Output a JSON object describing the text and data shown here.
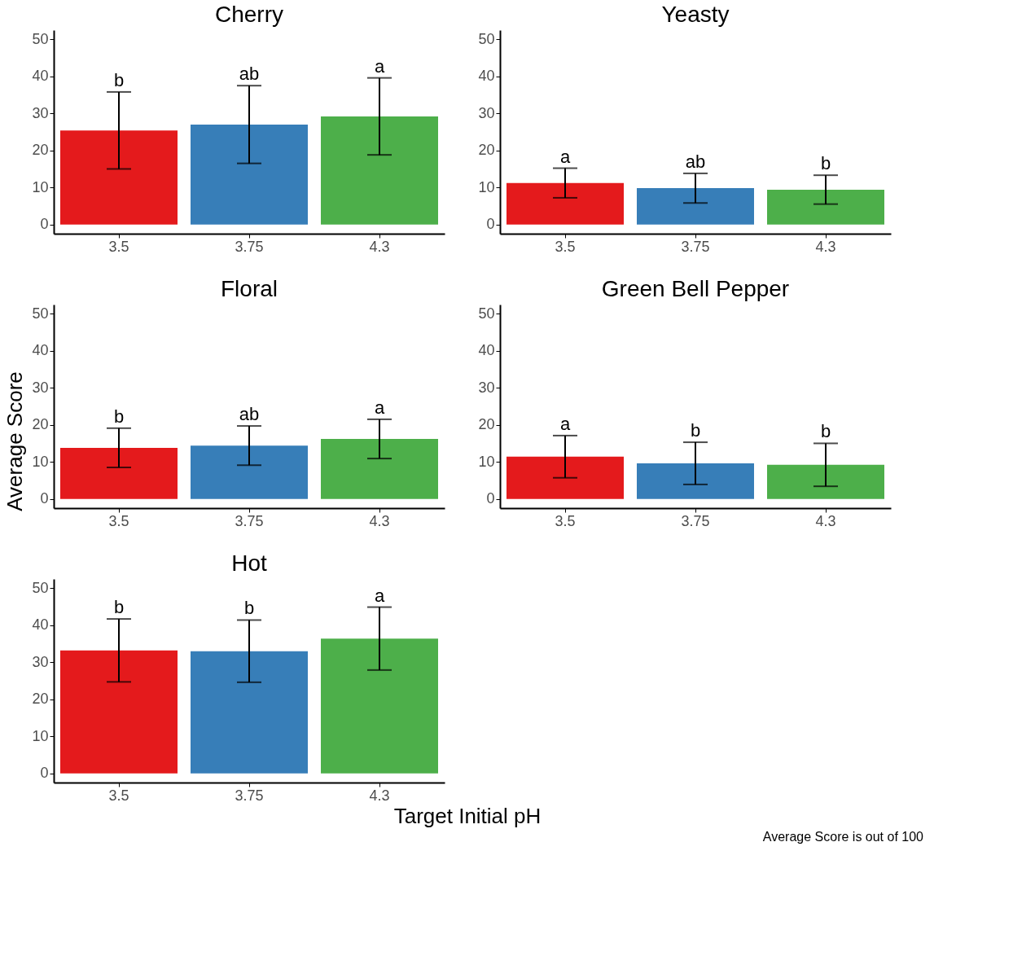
{
  "chart_data": [
    {
      "type": "bar",
      "title": "Cherry",
      "categories": [
        "3.5",
        "3.75",
        "4.3"
      ],
      "values": [
        25.4,
        27,
        29.2
      ],
      "errors": [
        10.4,
        10.5,
        10.4
      ],
      "colors": [
        "#e41a1c",
        "#377eb8",
        "#4daf4a"
      ],
      "ylim": [
        -2.5,
        52.5
      ],
      "yticks": [
        0,
        10,
        20,
        30,
        40,
        50
      ],
      "grid": false,
      "annotations": [
        {
          "text": "b",
          "x": "3.5",
          "y": 35.8
        },
        {
          "text": "ab",
          "x": "3.75",
          "y": 37.5
        },
        {
          "text": "a",
          "x": "4.3",
          "y": 39.6
        }
      ]
    },
    {
      "type": "bar",
      "title": "Yeasty",
      "categories": [
        "3.5",
        "3.75",
        "4.3"
      ],
      "values": [
        11.2,
        9.8,
        9.4
      ],
      "errors": [
        4,
        4,
        3.9
      ],
      "colors": [
        "#e41a1c",
        "#377eb8",
        "#4daf4a"
      ],
      "ylim": [
        -2.5,
        52.5
      ],
      "yticks": [
        0,
        10,
        20,
        30,
        40,
        50
      ],
      "grid": false,
      "annotations": [
        {
          "text": "a",
          "x": "3.5",
          "y": 15.2
        },
        {
          "text": "ab",
          "x": "3.75",
          "y": 13.8
        },
        {
          "text": "b",
          "x": "4.3",
          "y": 13.3
        }
      ]
    },
    {
      "type": "bar",
      "title": "Floral",
      "ylabel": "Average Score",
      "categories": [
        "3.5",
        "3.75",
        "4.3"
      ],
      "values": [
        13.8,
        14.4,
        16.2
      ],
      "errors": [
        5.3,
        5.3,
        5.3
      ],
      "colors": [
        "#e41a1c",
        "#377eb8",
        "#4daf4a"
      ],
      "ylim": [
        -2.5,
        52.5
      ],
      "yticks": [
        0,
        10,
        20,
        30,
        40,
        50
      ],
      "grid": false,
      "annotations": [
        {
          "text": "b",
          "x": "3.5",
          "y": 19.1
        },
        {
          "text": "ab",
          "x": "3.75",
          "y": 19.7
        },
        {
          "text": "a",
          "x": "4.3",
          "y": 21.5
        }
      ]
    },
    {
      "type": "bar",
      "title": "Green Bell Pepper",
      "categories": [
        "3.5",
        "3.75",
        "4.3"
      ],
      "values": [
        11.4,
        9.6,
        9.2
      ],
      "errors": [
        5.7,
        5.7,
        5.8
      ],
      "colors": [
        "#e41a1c",
        "#377eb8",
        "#4daf4a"
      ],
      "ylim": [
        -2.5,
        52.5
      ],
      "yticks": [
        0,
        10,
        20,
        30,
        40,
        50
      ],
      "grid": false,
      "annotations": [
        {
          "text": "a",
          "x": "3.5",
          "y": 17.1
        },
        {
          "text": "b",
          "x": "3.75",
          "y": 15.3
        },
        {
          "text": "b",
          "x": "4.3",
          "y": 15
        }
      ]
    },
    {
      "type": "bar",
      "title": "Hot",
      "xlabel": "Target Initial pH",
      "categories": [
        "3.5",
        "3.75",
        "4.3"
      ],
      "values": [
        33.2,
        33,
        36.4
      ],
      "errors": [
        8.5,
        8.4,
        8.5
      ],
      "colors": [
        "#e41a1c",
        "#377eb8",
        "#4daf4a"
      ],
      "ylim": [
        -2.5,
        52.5
      ],
      "yticks": [
        0,
        10,
        20,
        30,
        40,
        50
      ],
      "grid": false,
      "annotations": [
        {
          "text": "b",
          "x": "3.5",
          "y": 41.7
        },
        {
          "text": "b",
          "x": "3.75",
          "y": 41.4
        },
        {
          "text": "a",
          "x": "4.3",
          "y": 44.9
        },
        "Average Score is out of 100"
      ]
    }
  ]
}
